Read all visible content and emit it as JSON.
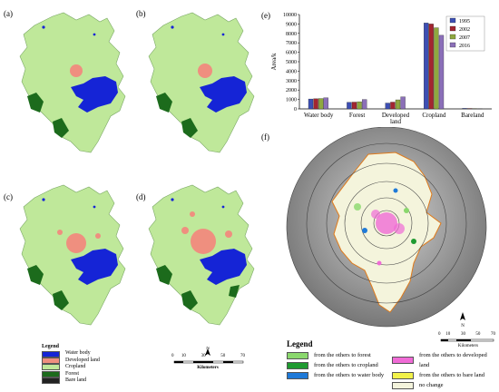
{
  "panels": {
    "a": "(a)",
    "b": "(b)",
    "c": "(c)",
    "d": "(d)",
    "e": "(e)",
    "f": "(f)"
  },
  "colors": {
    "water": "#1524d6",
    "developed": "#ef8f7f",
    "cropland": "#bfe89a",
    "forest": "#1c6b1c",
    "bare": "#222222",
    "bar1995": "#3d4fb4",
    "bar2002": "#a32530",
    "bar2007": "#8fa83f",
    "bar2016": "#8b6fb8",
    "to_forest": "#8ad86d",
    "to_cropland": "#1f9a30",
    "to_water": "#1f7ad8",
    "to_developed": "#f06bd6",
    "to_bare": "#f2f24a",
    "no_change": "#f4f4dc"
  },
  "legend_left": {
    "title": "Legend",
    "items": [
      {
        "label": "Water body",
        "color_key": "water"
      },
      {
        "label": "Developed land",
        "color_key": "developed"
      },
      {
        "label": "Cropland",
        "color_key": "cropland"
      },
      {
        "label": "Forest",
        "color_key": "forest"
      },
      {
        "label": "Bare land",
        "color_key": "bare"
      }
    ]
  },
  "scalebar_left": {
    "ticks": [
      "0",
      "10",
      "30",
      "50",
      "70"
    ],
    "unit": "Kilometers",
    "north": "N"
  },
  "chart_data": {
    "type": "bar",
    "title": "",
    "xlabel": "",
    "ylabel": "Area/k",
    "ylim": [
      0,
      10000
    ],
    "yticks": [
      0,
      1000,
      2000,
      3000,
      4000,
      5000,
      6000,
      7000,
      8000,
      9000,
      10000
    ],
    "categories": [
      "Water body",
      "Forest",
      "Developed land",
      "Cropland",
      "Bareland"
    ],
    "series": [
      {
        "name": "1995",
        "values": [
          1050,
          700,
          620,
          9100,
          60
        ]
      },
      {
        "name": "2002",
        "values": [
          1080,
          720,
          720,
          9000,
          50
        ]
      },
      {
        "name": "2007",
        "values": [
          1100,
          760,
          960,
          8600,
          40
        ]
      },
      {
        "name": "2016",
        "values": [
          1180,
          1000,
          1280,
          7800,
          30
        ]
      }
    ],
    "legend_position": "top-right",
    "grid": false
  },
  "legend_right": {
    "title": "Legend",
    "items_left": [
      {
        "label": "from the others to forest",
        "color_key": "to_forest"
      },
      {
        "label": "from the others to cropland",
        "color_key": "to_cropland"
      },
      {
        "label": "from the others to water body",
        "color_key": "to_water"
      }
    ],
    "items_right": [
      {
        "label": "from the others to developed land",
        "color_key": "to_developed"
      },
      {
        "label": "from the others to bare land",
        "color_key": "to_bare"
      },
      {
        "label": "no change",
        "color_key": "no_change"
      }
    ]
  },
  "scalebar_right": {
    "ticks": [
      "0",
      "10",
      "30",
      "50",
      "70"
    ],
    "unit": "Kilometers",
    "north": "N"
  }
}
